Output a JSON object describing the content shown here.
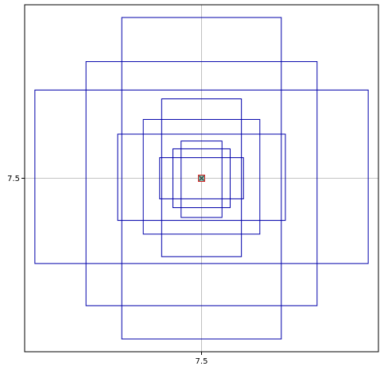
{
  "chart_data": {
    "type": "scatter",
    "title": "",
    "xlabel": "",
    "ylabel": "",
    "xlim": [
      5.77,
      9.23
    ],
    "ylim": [
      5.73,
      9.27
    ],
    "grid": true,
    "x_ticks": [
      7.5
    ],
    "x_tick_labels": [
      "7.5"
    ],
    "y_ticks": [
      7.5
    ],
    "y_tick_labels": [
      "7.5"
    ],
    "rectangles": [
      {
        "x0": 6.72,
        "x1": 8.28,
        "y0": 5.86,
        "y1": 9.14
      },
      {
        "x0": 6.37,
        "x1": 8.63,
        "y0": 6.2,
        "y1": 8.69
      },
      {
        "x0": 5.87,
        "x1": 9.13,
        "y0": 6.63,
        "y1": 8.4
      },
      {
        "x0": 7.11,
        "x1": 7.89,
        "y0": 6.7,
        "y1": 8.31
      },
      {
        "x0": 6.93,
        "x1": 8.07,
        "y0": 6.93,
        "y1": 8.1
      },
      {
        "x0": 6.68,
        "x1": 8.32,
        "y0": 7.07,
        "y1": 7.95
      },
      {
        "x0": 7.09,
        "x1": 7.91,
        "y0": 7.29,
        "y1": 7.71
      },
      {
        "x0": 7.3,
        "x1": 7.7,
        "y0": 7.1,
        "y1": 7.88
      },
      {
        "x0": 7.22,
        "x1": 7.78,
        "y0": 7.2,
        "y1": 7.8
      }
    ],
    "center_marker": {
      "x": 7.5,
      "y": 7.5,
      "fill": "#7fbfb0",
      "edge": "#d62728",
      "marker": "x"
    },
    "colors": {
      "rect_edge": "#0000aa",
      "grid": "#b0b0b0",
      "axes": "#000000"
    }
  }
}
